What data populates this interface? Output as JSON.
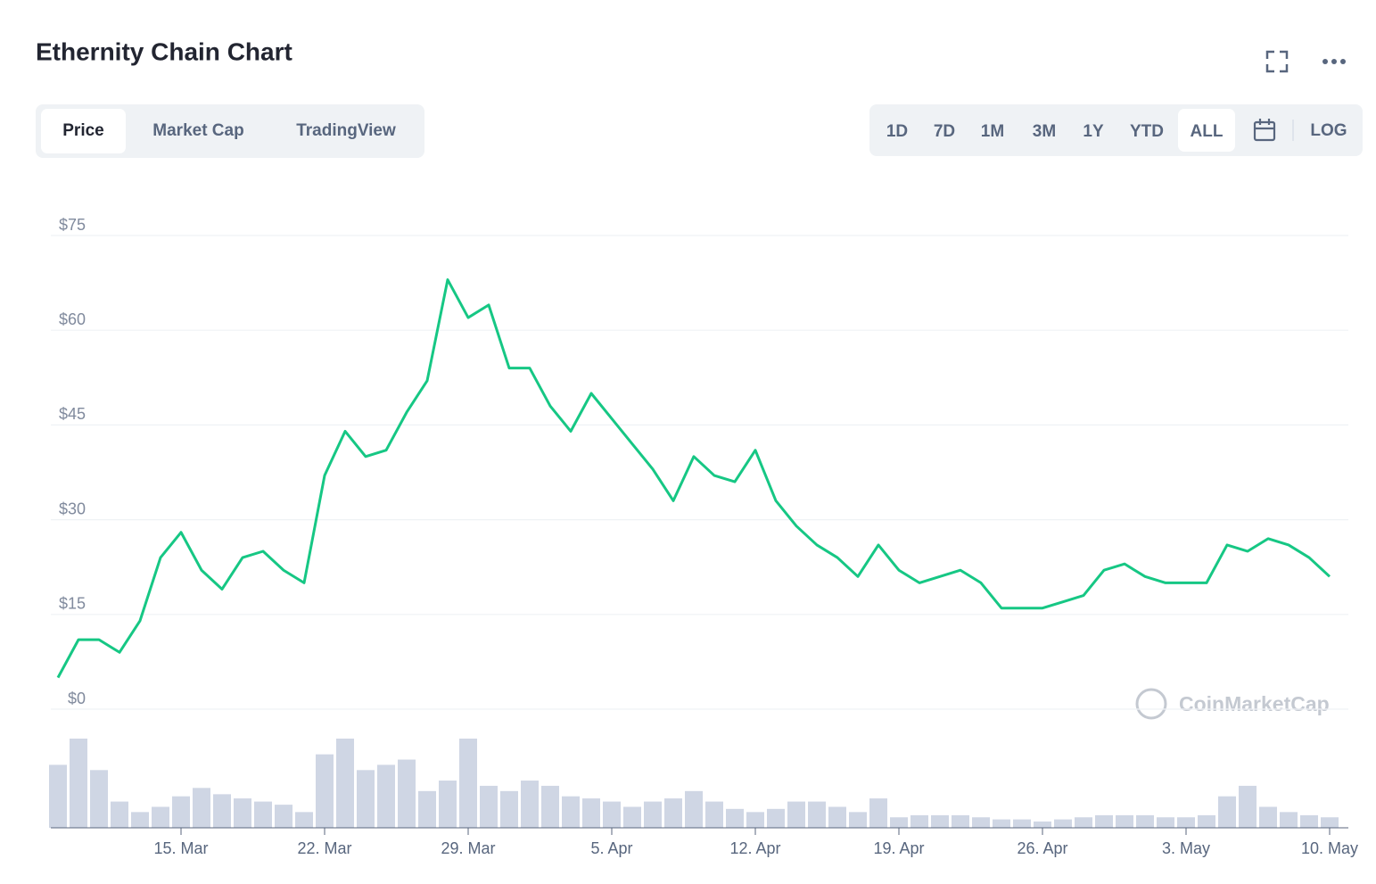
{
  "chart_data": {
    "type": "line",
    "title": "Ethernity Chain Chart",
    "watermark": "CoinMarketCap",
    "categories": [
      null,
      null,
      null,
      null,
      null,
      null,
      "15. Mar",
      null,
      null,
      null,
      null,
      null,
      null,
      "22. Mar",
      null,
      null,
      null,
      null,
      null,
      null,
      "29. Mar",
      null,
      null,
      null,
      null,
      null,
      null,
      "5. Apr",
      null,
      null,
      null,
      null,
      null,
      null,
      "12. Apr",
      null,
      null,
      null,
      null,
      null,
      null,
      "19. Apr",
      null,
      null,
      null,
      null,
      null,
      null,
      "26. Apr",
      null,
      null,
      null,
      null,
      null,
      null,
      "3. May",
      null,
      null,
      null,
      null,
      null,
      null,
      "10. May"
    ],
    "values": [
      5,
      11,
      11,
      9,
      14,
      24,
      28,
      22,
      19,
      24,
      25,
      22,
      20,
      37,
      44,
      40,
      41,
      47,
      52,
      68,
      62,
      64,
      54,
      54,
      48,
      44,
      50,
      46,
      42,
      38,
      33,
      40,
      37,
      36,
      41,
      33,
      29,
      26,
      24,
      21,
      26,
      22,
      20,
      21,
      22,
      20,
      16,
      16,
      16,
      17,
      18,
      22,
      23,
      21,
      20,
      20,
      20,
      26,
      25,
      27,
      26,
      24,
      21
    ],
    "volume": [
      60,
      85,
      55,
      25,
      15,
      20,
      30,
      38,
      32,
      28,
      25,
      22,
      15,
      70,
      85,
      55,
      60,
      65,
      35,
      45,
      85,
      40,
      35,
      45,
      40,
      30,
      28,
      25,
      20,
      25,
      28,
      35,
      25,
      18,
      15,
      18,
      25,
      25,
      20,
      15,
      28,
      10,
      12,
      12,
      12,
      10,
      8,
      8,
      6,
      8,
      10,
      12,
      12,
      12,
      10,
      10,
      12,
      30,
      40,
      20,
      15,
      12,
      10
    ],
    "color": "#16c784",
    "volume_color": "#cfd6e4",
    "ylim": [
      0,
      75
    ],
    "yticks": [
      {
        "value": 0,
        "label": "$0"
      },
      {
        "value": 15,
        "label": "$15"
      },
      {
        "value": 30,
        "label": "$30"
      },
      {
        "value": 45,
        "label": "$45"
      },
      {
        "value": 60,
        "label": "$60"
      },
      {
        "value": 75,
        "label": "$75"
      }
    ],
    "grid": true
  },
  "ui": {
    "tabs": [
      "Price",
      "Market Cap",
      "TradingView"
    ],
    "active_tab": "Price",
    "ranges": [
      "1D",
      "7D",
      "1M",
      "3M",
      "1Y",
      "YTD",
      "ALL"
    ],
    "active_range": "ALL",
    "log": "LOG"
  }
}
